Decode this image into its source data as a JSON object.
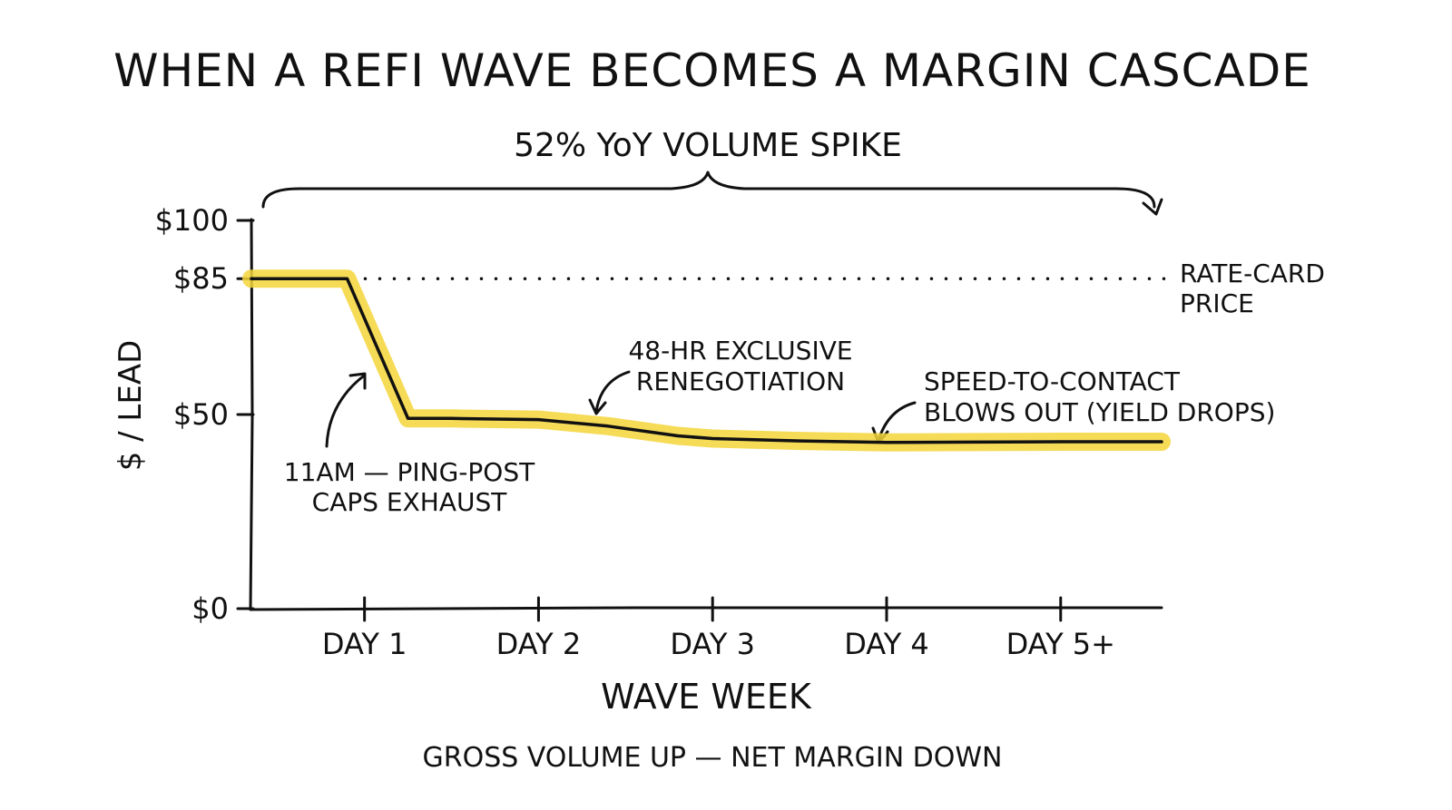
{
  "chart_data": {
    "type": "line",
    "title": "WHEN A REFI WAVE BECOMES A MARGIN CASCADE",
    "subtitle": "GROSS VOLUME UP — NET MARGIN DOWN",
    "xlabel": "WAVE WEEK",
    "ylabel": "$ / LEAD",
    "ylim": [
      0,
      100
    ],
    "y_ticks": [
      {
        "value": 0,
        "label": "$0"
      },
      {
        "value": 50,
        "label": "$50"
      },
      {
        "value": 85,
        "label": "$85"
      },
      {
        "value": 100,
        "label": "$100"
      }
    ],
    "x_ticks": [
      {
        "value": 1,
        "label": "DAY 1"
      },
      {
        "value": 2,
        "label": "DAY 2"
      },
      {
        "value": 3,
        "label": "DAY 3"
      },
      {
        "value": 4,
        "label": "DAY 4"
      },
      {
        "value": 5,
        "label": "DAY 5+"
      }
    ],
    "xlim": [
      0.35,
      5.58
    ],
    "series": [
      {
        "x": [
          0.35,
          0.9,
          1.25,
          1.5,
          2.0,
          2.4,
          2.8,
          3.0,
          3.5,
          4.0,
          4.5,
          5.0,
          5.58
        ],
        "values": [
          85,
          85,
          49,
          49,
          48.7,
          47,
          44.5,
          43.8,
          43.2,
          42.8,
          42.9,
          43.0,
          43.0
        ]
      }
    ],
    "reference_line": {
      "value": 85,
      "label_lines": [
        "RATE-CARD",
        "PRICE"
      ]
    },
    "brace": {
      "label": "52% YoY VOLUME SPIKE"
    },
    "annotations": [
      {
        "lines": [
          "11AM — PING-POST",
          "CAPS EXHAUST"
        ]
      },
      {
        "lines": [
          "48-HR EXCLUSIVE",
          "RENEGOTIATION"
        ]
      },
      {
        "lines": [
          "SPEED-TO-CONTACT",
          "BLOWS OUT (YIELD DROPS)"
        ]
      }
    ],
    "colors": {
      "line": "#111111",
      "highlight": "#f5d53a"
    },
    "grid": false
  }
}
